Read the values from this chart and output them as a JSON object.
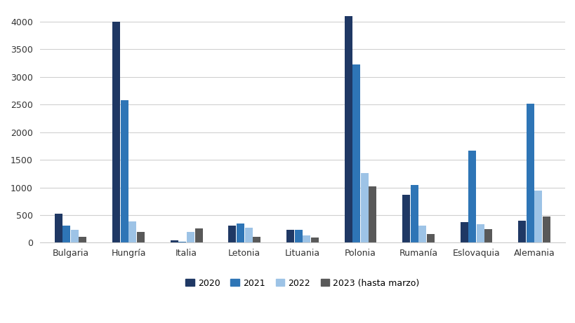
{
  "categories": [
    "Bulgaria",
    "Hungría",
    "Italia",
    "Letonia",
    "Lituania",
    "Polonia",
    "Rumanía",
    "Eslovaquia",
    "Alemania"
  ],
  "series": {
    "2020": [
      530,
      4000,
      50,
      310,
      230,
      4100,
      870,
      370,
      400
    ],
    "2021": [
      305,
      2580,
      20,
      350,
      240,
      3220,
      1050,
      1660,
      2520
    ],
    "2022": [
      240,
      390,
      200,
      270,
      130,
      1260,
      305,
      330,
      950
    ],
    "2023 (hasta marzo)": [
      110,
      200,
      260,
      110,
      95,
      1020,
      155,
      250,
      480
    ]
  },
  "colors": {
    "2020": "#1f3864",
    "2021": "#2e75b6",
    "2022": "#9dc3e6",
    "2023 (hasta marzo)": "#595959"
  },
  "ylim": [
    0,
    4200
  ],
  "yticks": [
    0,
    500,
    1000,
    1500,
    2000,
    2500,
    3000,
    3500,
    4000
  ],
  "background_color": "#ffffff",
  "grid_color": "#d0d0d0",
  "bar_width": 0.14,
  "figsize": [
    8.2,
    4.61
  ],
  "dpi": 100
}
